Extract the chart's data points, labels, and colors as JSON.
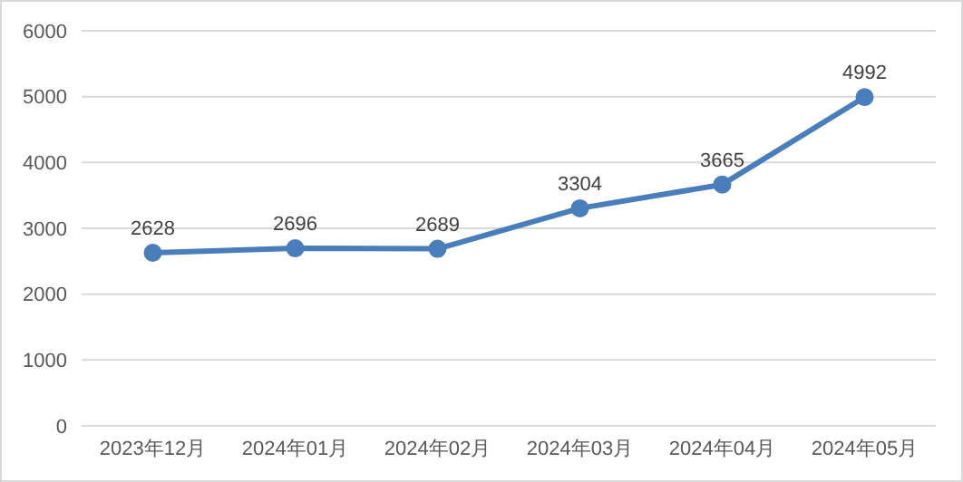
{
  "chart_data": {
    "type": "line",
    "categories": [
      "2023年12月",
      "2024年01月",
      "2024年02月",
      "2024年03月",
      "2024年04月",
      "2024年05月"
    ],
    "series": [
      {
        "color": "#4a7ebb",
        "values": [
          2628,
          2696,
          2689,
          3304,
          3665,
          4992
        ]
      }
    ],
    "ylim": [
      0,
      6000
    ],
    "yticks": [
      0,
      1000,
      2000,
      3000,
      4000,
      5000,
      6000
    ],
    "grid": "y",
    "marker": "circle",
    "line_style": "solid",
    "data_labels": true,
    "legend": false
  }
}
